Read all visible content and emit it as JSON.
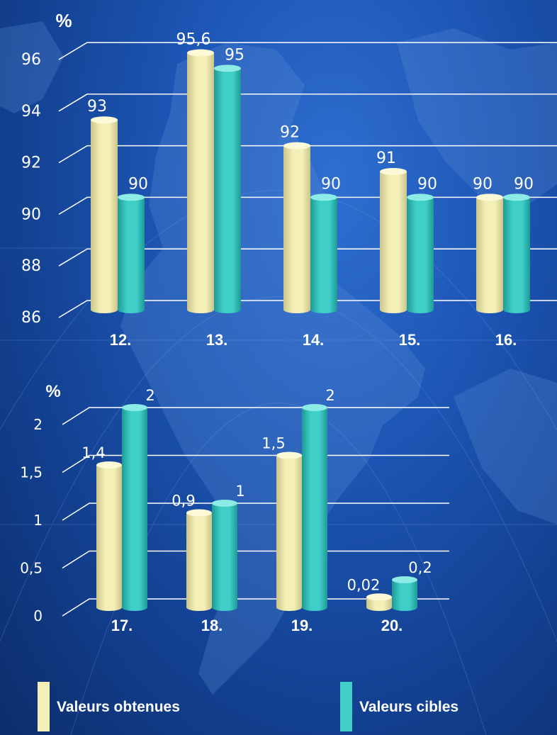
{
  "colors": {
    "obtained_front": "#f3efb7",
    "obtained_side": "#cbc58a",
    "obtained_top": "#fcf9d6",
    "target_front": "#3fcfc8",
    "target_side": "#1e9a95",
    "target_top": "#8cebe4",
    "text": "#ffffff",
    "grid": "#ffffff"
  },
  "chart_data": [
    {
      "type": "bar",
      "ylabel": "%",
      "ylim": [
        86,
        96
      ],
      "yticks": [
        "86",
        "88",
        "90",
        "92",
        "94",
        "96"
      ],
      "categories": [
        "12.",
        "13.",
        "14.",
        "15.",
        "16."
      ],
      "series": [
        {
          "name": "Valeurs obtenues",
          "values": [
            93,
            95.6,
            92,
            91,
            90
          ],
          "labels": [
            "93",
            "95,6",
            "92",
            "91",
            "90"
          ]
        },
        {
          "name": "Valeurs cibles",
          "values": [
            90,
            95,
            90,
            90,
            90
          ],
          "labels": [
            "90",
            "95",
            "90",
            "90",
            "90"
          ]
        }
      ]
    },
    {
      "type": "bar",
      "ylabel": "%",
      "ylim": [
        0,
        2
      ],
      "yticks": [
        "0",
        "0,5",
        "1",
        "1,5",
        "2"
      ],
      "categories": [
        "17.",
        "18.",
        "19.",
        "20."
      ],
      "series": [
        {
          "name": "Valeurs obtenues",
          "values": [
            1.4,
            0.9,
            1.5,
            0.02
          ],
          "labels": [
            "1,4",
            "0,9",
            "1,5",
            "0,02"
          ]
        },
        {
          "name": "Valeurs cibles",
          "values": [
            2,
            1,
            2,
            0.2
          ],
          "labels": [
            "2",
            "1",
            "2",
            "0,2"
          ]
        }
      ]
    }
  ],
  "legend": {
    "obtained_label": "Valeurs obtenues",
    "target_label": "Valeurs cibles"
  }
}
